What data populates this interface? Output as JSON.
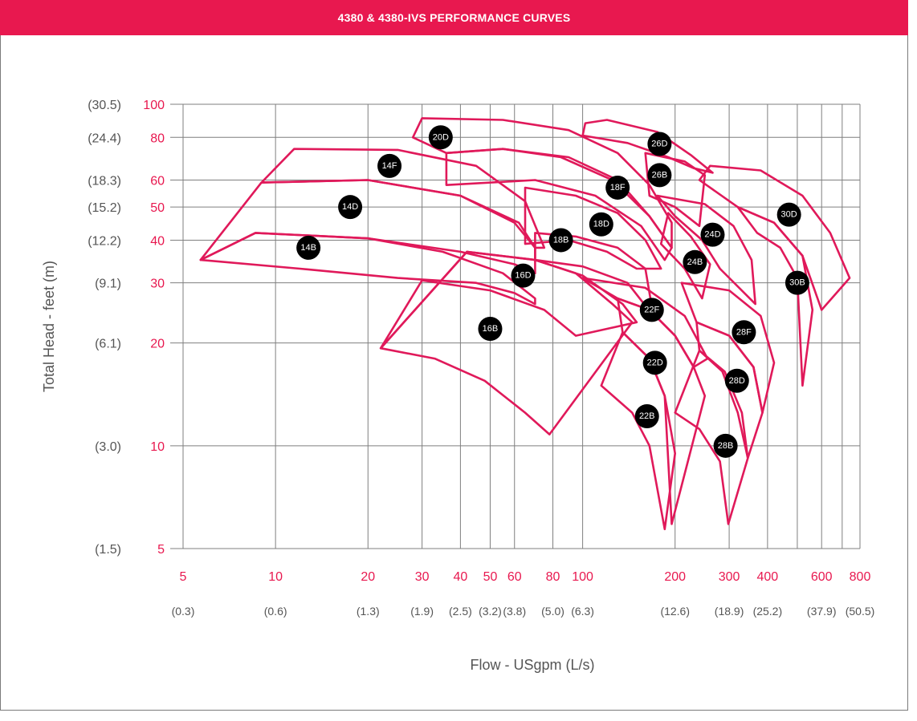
{
  "header": {
    "title": "4380 & 4380-IVS PERFORMANCE CURVES"
  },
  "colors": {
    "accent": "#e8184f",
    "curve": "#e0195a",
    "badge": "#000000",
    "grid": "#7f7f7f"
  },
  "chart_data": {
    "type": "line",
    "title": "4380 & 4380-IVS PERFORMANCE CURVES",
    "xlabel": "Flow - USgpm (L/s)",
    "ylabel": "Total Head - feet (m)",
    "x_scale": "log",
    "y_scale": "log",
    "xlim": [
      5,
      800
    ],
    "ylim": [
      5,
      100
    ],
    "grid": true,
    "x_ticks": [
      5,
      10,
      20,
      30,
      40,
      50,
      60,
      80,
      100,
      200,
      300,
      400,
      600,
      800
    ],
    "x_tick_labels": [
      "5",
      "10",
      "20",
      "30",
      "40",
      "50",
      "60",
      "80",
      "100",
      "200",
      "300",
      "400",
      "600",
      "800"
    ],
    "x_grid": [
      5,
      10,
      20,
      30,
      40,
      50,
      60,
      80,
      100,
      200,
      300,
      400,
      500,
      600,
      700,
      800
    ],
    "x_metric_labels": [
      "(0.3)",
      "(0.6)",
      "(1.3)",
      "(1.9)",
      "(2.5)",
      "(3.2)",
      "(3.8)",
      "(5.0)",
      "(6.3)",
      "(12.6)",
      "(18.9)",
      "(25.2)",
      "(37.9)",
      "(50.5)"
    ],
    "y_ticks": [
      5,
      10,
      20,
      30,
      40,
      50,
      60,
      80,
      100
    ],
    "y_tick_labels": [
      "5",
      "10",
      "20",
      "30",
      "40",
      "50",
      "60",
      "80",
      "100"
    ],
    "y_metric_labels": [
      "(1.5)",
      "(3.0)",
      "(6.1)",
      "(9.1)",
      "(12.2)",
      "(15.2)",
      "(18.3)",
      "(24.4)",
      "(30.5)"
    ],
    "y_metric_ticks": [
      5,
      10,
      20,
      30,
      40,
      50,
      60,
      80,
      100
    ],
    "series": [
      {
        "name": "14B",
        "label_at": [
          12.8,
          38
        ],
        "upper": [
          [
            5.7,
            35
          ],
          [
            8.6,
            42
          ],
          [
            20,
            40.5
          ],
          [
            35,
            37
          ],
          [
            55,
            32
          ],
          [
            70,
            27
          ]
        ],
        "lower": [
          [
            5.7,
            35
          ],
          [
            12,
            33
          ],
          [
            25,
            31
          ],
          [
            45,
            30
          ],
          [
            60,
            28
          ],
          [
            70,
            26
          ]
        ]
      },
      {
        "name": "14D",
        "label_at": [
          17.5,
          50
        ],
        "upper": [
          [
            5.7,
            35
          ],
          [
            9.0,
            59
          ],
          [
            20,
            60
          ],
          [
            40,
            54
          ],
          [
            62,
            45
          ],
          [
            70,
            38
          ]
        ],
        "lower": [
          [
            5.7,
            35
          ],
          [
            8.6,
            42
          ],
          [
            20,
            40.5
          ],
          [
            40,
            37
          ],
          [
            60,
            34
          ],
          [
            70,
            32
          ]
        ]
      },
      {
        "name": "14F",
        "label_at": [
          23.5,
          66
        ],
        "upper": [
          [
            9.0,
            59
          ],
          [
            11.5,
            74
          ],
          [
            25,
            73.5
          ],
          [
            45,
            66
          ],
          [
            65,
            52
          ],
          [
            75,
            38
          ]
        ],
        "lower": [
          [
            9.0,
            59
          ],
          [
            20,
            60
          ],
          [
            40,
            54
          ],
          [
            60,
            45
          ],
          [
            70,
            38
          ]
        ]
      },
      {
        "name": "16B",
        "label_at": [
          50,
          22
        ],
        "upper": [
          [
            42,
            37
          ],
          [
            70,
            35
          ],
          [
            95,
            32
          ],
          [
            125,
            26
          ],
          [
            145,
            23
          ]
        ],
        "lower": [
          [
            22,
            19.3
          ],
          [
            33,
            18
          ],
          [
            48,
            15.5
          ],
          [
            65,
            12.5
          ],
          [
            78,
            10.8
          ]
        ]
      },
      {
        "name": "16D",
        "label_at": [
          64,
          31.5
        ],
        "upper": [
          [
            42,
            37
          ],
          [
            70,
            35
          ],
          [
            100,
            31.5
          ],
          [
            135,
            26
          ],
          [
            150,
            23
          ]
        ],
        "lower": [
          [
            22,
            19.3
          ],
          [
            30,
            30.5
          ],
          [
            50,
            28.5
          ],
          [
            75,
            25
          ],
          [
            95,
            21
          ]
        ]
      },
      {
        "name": "18B",
        "label_at": [
          85,
          40
        ],
        "upper": [
          [
            70,
            42
          ],
          [
            95,
            41
          ],
          [
            130,
            38
          ],
          [
            160,
            33
          ]
        ],
        "lower": [
          [
            70,
            35
          ],
          [
            100,
            33.5
          ],
          [
            140,
            30
          ],
          [
            170,
            24
          ]
        ]
      },
      {
        "name": "18D",
        "label_at": [
          115,
          44.5
        ],
        "upper": [
          [
            65,
            57
          ],
          [
            95,
            54
          ],
          [
            130,
            48
          ],
          [
            160,
            40
          ],
          [
            180,
            33
          ]
        ],
        "lower": [
          [
            65,
            39
          ],
          [
            90,
            40
          ],
          [
            120,
            37
          ],
          [
            150,
            33
          ]
        ]
      },
      {
        "name": "18F",
        "label_at": [
          130,
          57
        ],
        "upper": [
          [
            36,
            72
          ],
          [
            55,
            74
          ],
          [
            85,
            70
          ],
          [
            125,
            60
          ],
          [
            165,
            47
          ],
          [
            195,
            38
          ]
        ],
        "lower": [
          [
            36,
            58
          ],
          [
            70,
            60
          ],
          [
            110,
            54
          ],
          [
            155,
            44
          ],
          [
            185,
            35
          ]
        ]
      },
      {
        "name": "20D",
        "label_at": [
          34.5,
          80
        ],
        "upper": [
          [
            28,
            80
          ],
          [
            30,
            91
          ],
          [
            55,
            90
          ],
          [
            90,
            84
          ],
          [
            130,
            72
          ],
          [
            165,
            58
          ],
          [
            195,
            45
          ]
        ],
        "lower": [
          [
            28,
            80
          ],
          [
            36,
            72
          ],
          [
            55,
            74
          ],
          [
            90,
            70
          ],
          [
            130,
            60
          ],
          [
            165,
            47
          ],
          [
            195,
            38
          ]
        ]
      },
      {
        "name": "22B",
        "label_at": [
          162,
          12.2
        ],
        "upper": [
          [
            135,
            21.5
          ],
          [
            165,
            18
          ],
          [
            185,
            14
          ],
          [
            200,
            9.5
          ]
        ],
        "lower": [
          [
            115,
            15
          ],
          [
            145,
            12.5
          ],
          [
            165,
            10
          ],
          [
            185,
            5.7
          ]
        ]
      },
      {
        "name": "22D",
        "label_at": [
          172,
          17.5
        ],
        "upper": [
          [
            130,
            27
          ],
          [
            165,
            25
          ],
          [
            200,
            21
          ],
          [
            230,
            17
          ],
          [
            250,
            14
          ]
        ],
        "lower": [
          [
            135,
            21.5
          ],
          [
            165,
            18
          ],
          [
            185,
            14
          ],
          [
            195,
            5.9
          ]
        ]
      },
      {
        "name": "22F",
        "label_at": [
          168,
          25
        ],
        "upper": [
          [
            100,
            31
          ],
          [
            160,
            29
          ],
          [
            215,
            24
          ],
          [
            255,
            18
          ]
        ],
        "lower": [
          [
            130,
            27
          ],
          [
            165,
            25
          ],
          [
            200,
            21
          ],
          [
            230,
            17
          ]
        ]
      },
      {
        "name": "24B",
        "label_at": [
          232,
          34.5
        ],
        "upper": [
          [
            190,
            48
          ],
          [
            225,
            41
          ],
          [
            260,
            34
          ]
        ],
        "lower": [
          [
            180,
            39
          ],
          [
            215,
            33
          ],
          [
            245,
            27
          ]
        ]
      },
      {
        "name": "24D",
        "label_at": [
          265,
          41.5
        ],
        "upper": [
          [
            175,
            54
          ],
          [
            250,
            51
          ],
          [
            310,
            44
          ],
          [
            355,
            35
          ],
          [
            365,
            26
          ]
        ],
        "lower": [
          [
            175,
            54
          ],
          [
            200,
            47
          ],
          [
            245,
            40
          ],
          [
            280,
            33
          ]
        ]
      },
      {
        "name": "26B",
        "label_at": [
          178,
          62
        ],
        "upper": [
          [
            160,
            72
          ],
          [
            215,
            68
          ],
          [
            250,
            62
          ]
        ],
        "lower": [
          [
            165,
            54
          ],
          [
            200,
            50
          ],
          [
            240,
            44
          ]
        ]
      },
      {
        "name": "26D",
        "label_at": [
          178,
          76.5
        ],
        "upper": [
          [
            102,
            88
          ],
          [
            120,
            90
          ],
          [
            175,
            83
          ],
          [
            225,
            71
          ],
          [
            265,
            63
          ]
        ],
        "lower": [
          [
            100,
            81
          ],
          [
            140,
            77
          ],
          [
            190,
            70
          ],
          [
            230,
            65
          ]
        ]
      },
      {
        "name": "28B",
        "label_at": [
          292,
          10
        ],
        "upper": [
          [
            240,
            19
          ],
          [
            285,
            16.5
          ],
          [
            320,
            12.5
          ],
          [
            345,
            9.2
          ]
        ],
        "lower": [
          [
            200,
            12.5
          ],
          [
            240,
            11.2
          ],
          [
            280,
            9
          ],
          [
            298,
            5.9
          ]
        ]
      },
      {
        "name": "28D",
        "label_at": [
          318,
          15.5
        ],
        "upper": [
          [
            235,
            23
          ],
          [
            300,
            21
          ],
          [
            360,
            17
          ],
          [
            385,
            12.5
          ]
        ],
        "lower": [
          [
            240,
            19
          ],
          [
            290,
            16.5
          ],
          [
            330,
            12.5
          ],
          [
            345,
            9.2
          ]
        ]
      },
      {
        "name": "28F",
        "label_at": [
          335,
          21.5
        ],
        "upper": [
          [
            210,
            30
          ],
          [
            300,
            28.5
          ],
          [
            380,
            24
          ],
          [
            420,
            17.5
          ]
        ],
        "lower": [
          [
            235,
            23
          ],
          [
            300,
            21
          ],
          [
            360,
            17
          ],
          [
            385,
            12.5
          ]
        ]
      },
      {
        "name": "30B",
        "label_at": [
          500,
          30
        ],
        "upper": [
          [
            320,
            50
          ],
          [
            420,
            45
          ],
          [
            520,
            36
          ],
          [
            560,
            25
          ]
        ],
        "lower": [
          [
            370,
            42
          ],
          [
            440,
            38
          ],
          [
            500,
            31
          ],
          [
            520,
            15
          ]
        ]
      },
      {
        "name": "30D",
        "label_at": [
          470,
          47.5
        ],
        "upper": [
          [
            240,
            60
          ],
          [
            260,
            66
          ],
          [
            380,
            64
          ],
          [
            520,
            54
          ],
          [
            640,
            42
          ],
          [
            740,
            31
          ]
        ],
        "lower": [
          [
            240,
            60
          ],
          [
            320,
            50
          ],
          [
            420,
            45
          ],
          [
            520,
            36
          ],
          [
            600,
            25
          ]
        ]
      }
    ]
  }
}
